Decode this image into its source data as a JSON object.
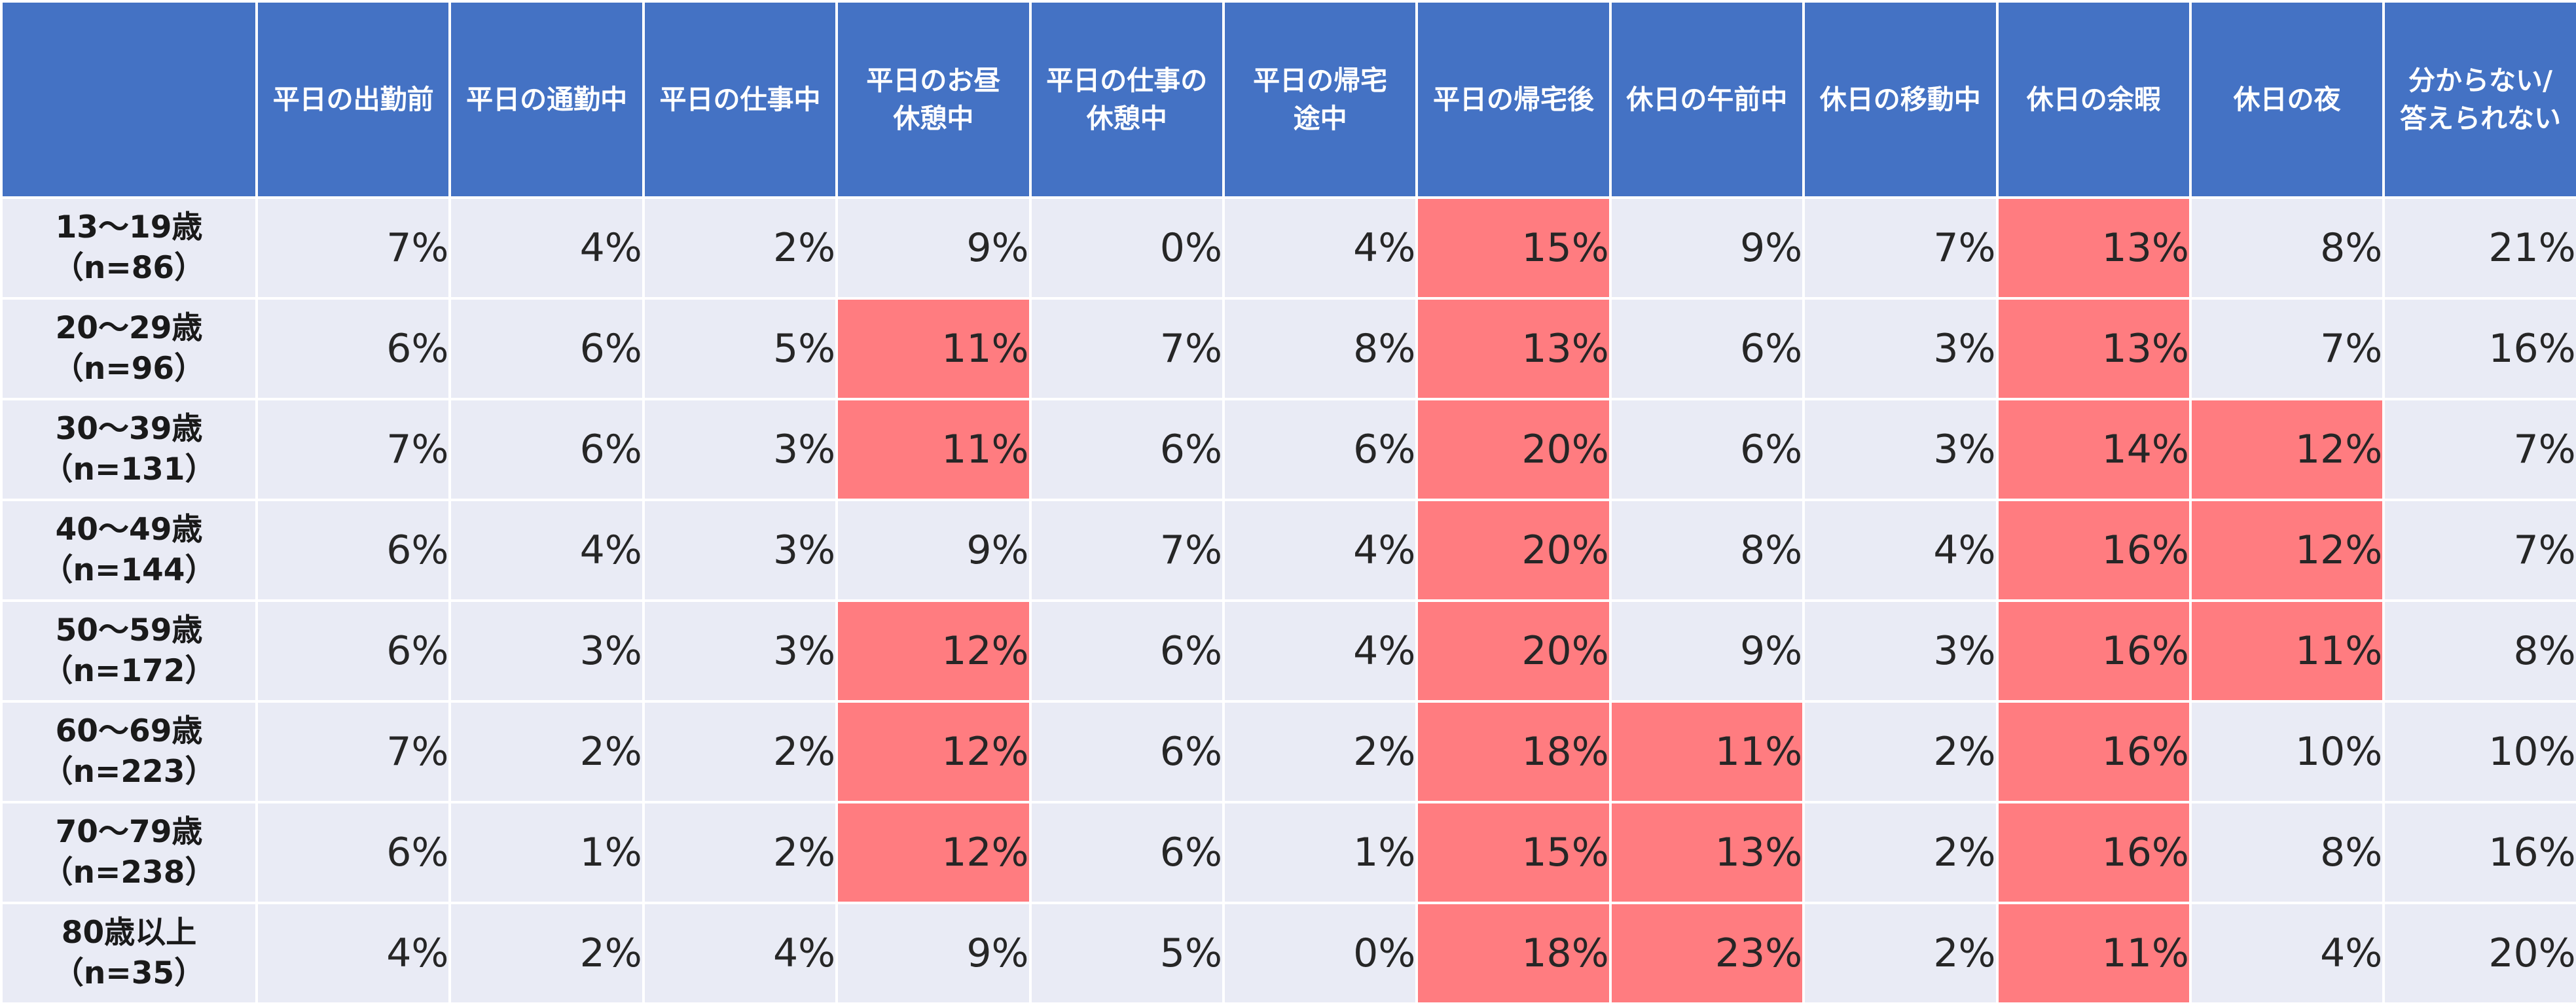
{
  "chart_data": {
    "type": "table",
    "columns": [
      "平日の出勤前",
      "平日の通勤中",
      "平日の仕事中",
      "平日のお昼\n休憩中",
      "平日の仕事の\n休憩中",
      "平日の帰宅\n途中",
      "平日の帰宅後",
      "休日の午前中",
      "休日の移動中",
      "休日の余暇",
      "休日の夜",
      "分からない/\n答えられない"
    ],
    "rows": [
      {
        "label": "13～19歳\n（n=86）",
        "values": [
          "7%",
          "4%",
          "2%",
          "9%",
          "0%",
          "4%",
          "15%",
          "9%",
          "7%",
          "13%",
          "8%",
          "21%"
        ],
        "highlight": [
          false,
          false,
          false,
          false,
          false,
          false,
          true,
          false,
          false,
          true,
          false,
          false
        ]
      },
      {
        "label": "20～29歳\n（n=96）",
        "values": [
          "6%",
          "6%",
          "5%",
          "11%",
          "7%",
          "8%",
          "13%",
          "6%",
          "3%",
          "13%",
          "7%",
          "16%"
        ],
        "highlight": [
          false,
          false,
          false,
          true,
          false,
          false,
          true,
          false,
          false,
          true,
          false,
          false
        ]
      },
      {
        "label": "30～39歳\n（n=131）",
        "values": [
          "7%",
          "6%",
          "3%",
          "11%",
          "6%",
          "6%",
          "20%",
          "6%",
          "3%",
          "14%",
          "12%",
          "7%"
        ],
        "highlight": [
          false,
          false,
          false,
          true,
          false,
          false,
          true,
          false,
          false,
          true,
          true,
          false
        ]
      },
      {
        "label": "40～49歳\n（n=144）",
        "values": [
          "6%",
          "4%",
          "3%",
          "9%",
          "7%",
          "4%",
          "20%",
          "8%",
          "4%",
          "16%",
          "12%",
          "7%"
        ],
        "highlight": [
          false,
          false,
          false,
          false,
          false,
          false,
          true,
          false,
          false,
          true,
          true,
          false
        ]
      },
      {
        "label": "50～59歳\n（n=172）",
        "values": [
          "6%",
          "3%",
          "3%",
          "12%",
          "6%",
          "4%",
          "20%",
          "9%",
          "3%",
          "16%",
          "11%",
          "8%"
        ],
        "highlight": [
          false,
          false,
          false,
          true,
          false,
          false,
          true,
          false,
          false,
          true,
          true,
          false
        ]
      },
      {
        "label": "60～69歳\n（n=223）",
        "values": [
          "7%",
          "2%",
          "2%",
          "12%",
          "6%",
          "2%",
          "18%",
          "11%",
          "2%",
          "16%",
          "10%",
          "10%"
        ],
        "highlight": [
          false,
          false,
          false,
          true,
          false,
          false,
          true,
          true,
          false,
          true,
          false,
          false
        ]
      },
      {
        "label": "70～79歳\n（n=238）",
        "values": [
          "6%",
          "1%",
          "2%",
          "12%",
          "6%",
          "1%",
          "15%",
          "13%",
          "2%",
          "16%",
          "8%",
          "16%"
        ],
        "highlight": [
          false,
          false,
          false,
          true,
          false,
          false,
          true,
          true,
          false,
          true,
          false,
          false
        ]
      },
      {
        "label": "80歳以上\n（n=35）",
        "values": [
          "4%",
          "2%",
          "4%",
          "9%",
          "5%",
          "0%",
          "18%",
          "23%",
          "2%",
          "11%",
          "4%",
          "20%"
        ],
        "highlight": [
          false,
          false,
          false,
          false,
          false,
          false,
          true,
          true,
          false,
          true,
          false,
          false
        ]
      }
    ]
  },
  "colors": {
    "header_bg": "#4472c4",
    "header_text": "#ffffff",
    "cell_bg": "#e9ebf5",
    "highlight_bg": "#ff7c80",
    "text": "#262626"
  }
}
